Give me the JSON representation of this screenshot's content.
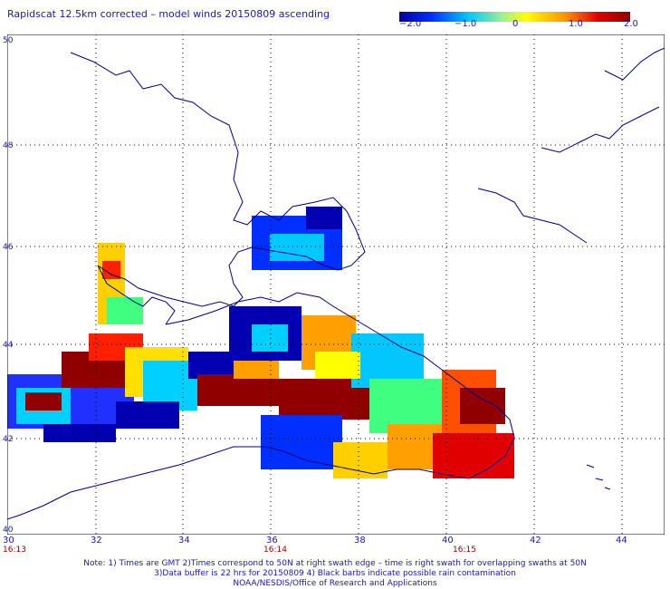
{
  "title": "Rapidscat 12.5km corrected – model winds 20150809 ascending",
  "colorbar": {
    "labels": [
      "−2.0",
      "−1.0",
      "0",
      "1.0",
      "2.0"
    ],
    "colors": [
      "#0000a0",
      "#0030ff",
      "#00c8ff",
      "#a0f090",
      "#ffff00",
      "#ff9000",
      "#e00000",
      "#900000"
    ]
  },
  "axes": {
    "lat_labels": [
      "50",
      "48",
      "46",
      "44",
      "42",
      "40"
    ],
    "lon_labels": [
      "30",
      "32",
      "34",
      "36",
      "38",
      "40",
      "42",
      "44"
    ],
    "time_labels": [
      "16:13",
      "16:14",
      "16:15"
    ]
  },
  "notes": [
    "Note: 1) Times are GMT 2)Times correspond to 50N at right swath edge – time is right swath for overlapping swaths at 50N",
    "3)Data buffer is 22 hrs for 20150809 4) Black barbs indicate possible rain contamination",
    "NOAA/NESDIS/Office of Research and Applications"
  ],
  "colors": {
    "label": "#1a1aa0",
    "time": "#8b0000",
    "coast": "#000080",
    "grid": "#000000"
  }
}
